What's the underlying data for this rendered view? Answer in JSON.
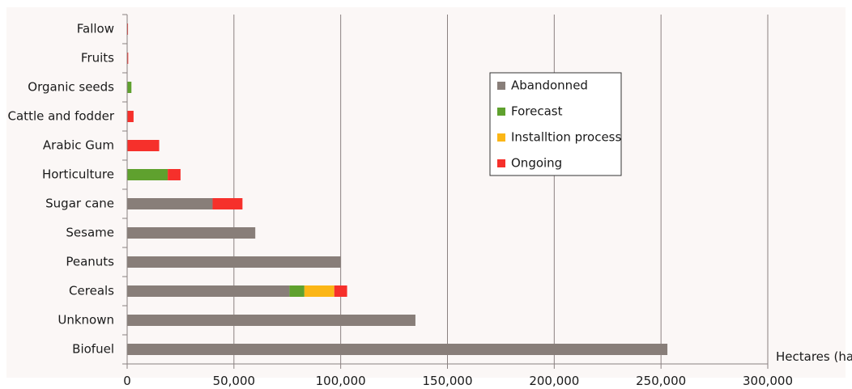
{
  "chart_data": {
    "type": "bar",
    "orientation": "horizontal",
    "stacked": true,
    "categories": [
      "Fallow",
      "Fruits",
      "Organic seeds",
      "Cattle and fodder",
      "Arabic Gum",
      "Horticulture",
      "Sugar cane",
      "Sesame",
      "Peanuts",
      "Cereals",
      "Unknown",
      "Biofuel"
    ],
    "series": [
      {
        "name": "Abandonned",
        "color": "#887e79",
        "values": [
          0,
          0,
          0,
          0,
          0,
          0,
          40000,
          60000,
          100000,
          76000,
          135000,
          253000
        ]
      },
      {
        "name": "Forecast",
        "color": "#5fa12e",
        "values": [
          0,
          0,
          2000,
          0,
          0,
          19000,
          0,
          0,
          0,
          7000,
          0,
          0
        ]
      },
      {
        "name": "Installtion process",
        "color": "#fbb616",
        "values": [
          0,
          0,
          0,
          0,
          0,
          0,
          0,
          0,
          0,
          14000,
          0,
          0
        ]
      },
      {
        "name": "Ongoing",
        "color": "#f6302b",
        "values": [
          400,
          500,
          0,
          3000,
          15000,
          6000,
          14000,
          0,
          0,
          6000,
          0,
          0
        ]
      }
    ],
    "xlim": [
      0,
      300000
    ],
    "xticks": [
      0,
      50000,
      100000,
      150000,
      200000,
      250000,
      300000
    ],
    "xtick_labels": [
      "0",
      "50,000",
      "100,000",
      "150,000",
      "200,000",
      "250,000",
      "300,000"
    ],
    "xlabel": "Hectares (ha)",
    "ylabel": "",
    "title": "",
    "grid": "vertical",
    "legend_position": "top-right"
  }
}
